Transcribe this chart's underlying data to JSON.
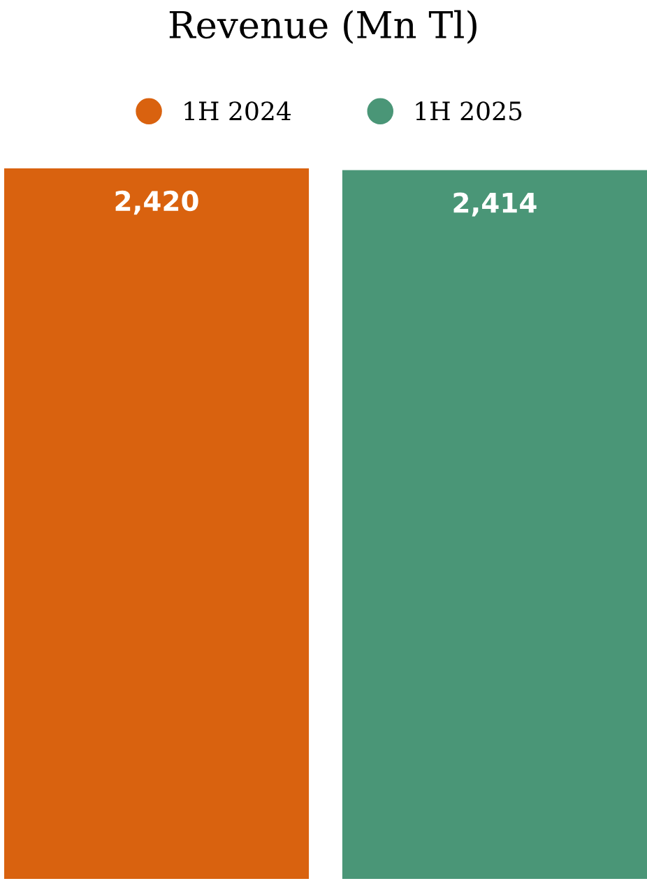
{
  "chart_data": {
    "type": "bar",
    "title": "Revenue (Mn Tl)",
    "categories": [
      null
    ],
    "series": [
      {
        "name": "1H 2024",
        "color": "#d9620f",
        "values": [
          2420
        ],
        "value_labels": [
          "2,420"
        ]
      },
      {
        "name": "1H 2025",
        "color": "#4a9677",
        "values": [
          2414
        ],
        "value_labels": [
          "2,414"
        ]
      }
    ],
    "legend": "top",
    "grid": false,
    "tick_labels": false
  }
}
